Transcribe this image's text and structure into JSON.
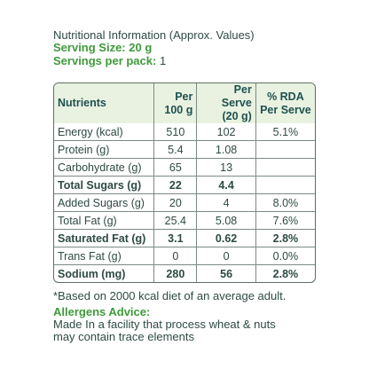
{
  "header": {
    "title": "Nutritional Information (Approx. Values)",
    "serving_size_label": "Serving Size:",
    "serving_size": "20 g",
    "servings_label": "Servings per pack:",
    "servings": "1"
  },
  "table": {
    "columns": [
      [
        "Nutrients"
      ],
      [
        "Per",
        "100 g"
      ],
      [
        "Per Serve",
        "(20 g)"
      ],
      [
        "% RDA",
        "Per Serve"
      ]
    ],
    "rows": [
      {
        "cells": [
          "Energy (kcal)",
          "510",
          "102",
          "5.1%"
        ],
        "bold": false
      },
      {
        "cells": [
          "Protein (g)",
          "5.4",
          "1.08",
          null
        ],
        "bold": false
      },
      {
        "cells": [
          "Carbohydrate (g)",
          "65",
          "13",
          null
        ],
        "bold": false
      },
      {
        "cells": [
          "Total Sugars (g)",
          "22",
          "4.4",
          null
        ],
        "bold": true
      },
      {
        "cells": [
          "Added Sugars (g)",
          "20",
          "4",
          "8.0%"
        ],
        "bold": false
      },
      {
        "cells": [
          "Total Fat (g)",
          "25.4",
          "5.08",
          "7.6%"
        ],
        "bold": false
      },
      {
        "cells": [
          "Saturated Fat (g)",
          "3.1",
          "0.62",
          "2.8%"
        ],
        "bold": true
      },
      {
        "cells": [
          "Trans Fat (g)",
          "0",
          "0",
          "0.0%"
        ],
        "bold": false
      },
      {
        "cells": [
          "Sodium (mg)",
          "280",
          "56",
          "2.8%"
        ],
        "bold": true
      }
    ]
  },
  "footnote": "*Based on 2000 kcal diet of an average adult.",
  "allergens": {
    "title": "Allergens Advice:",
    "lines": [
      "Made In a facility that process wheat & nuts",
      "may contain trace elements"
    ]
  }
}
